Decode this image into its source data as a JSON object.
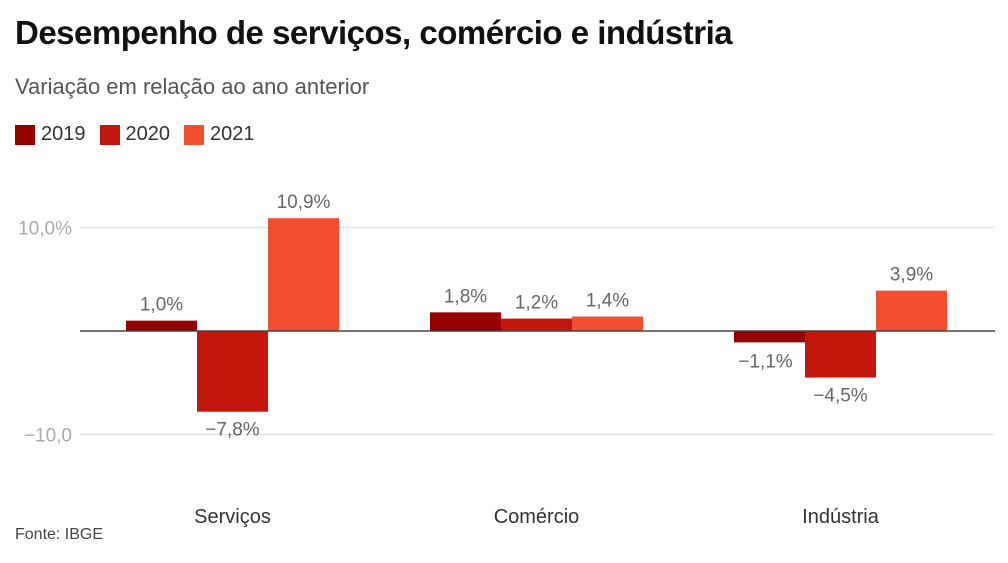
{
  "chart_data": {
    "type": "bar",
    "title": "Desempenho de serviços, comércio e indústria",
    "subtitle": "Variação em relação ao ano anterior",
    "xlabel": "",
    "ylabel": "",
    "categories": [
      "Serviços",
      "Comércio",
      "Indústria"
    ],
    "series": [
      {
        "name": "2019",
        "color": "#960000",
        "values": [
          1.0,
          1.8,
          -1.1
        ],
        "labels": [
          "1,0%",
          "1,8%",
          "−1,1%"
        ]
      },
      {
        "name": "2020",
        "color": "#c4170c",
        "values": [
          -7.8,
          1.2,
          -4.5
        ],
        "labels": [
          "−7,8%",
          "1,2%",
          "−4,5%"
        ]
      },
      {
        "name": "2021",
        "color": "#f24f32",
        "values": [
          10.9,
          1.4,
          3.9
        ],
        "labels": [
          "10,9%",
          "1,4%",
          "3,9%"
        ]
      }
    ],
    "yticks": [
      {
        "value": 10,
        "label": "10,0%"
      },
      {
        "value": -10,
        "label": "−10,0"
      }
    ],
    "ylim": [
      -10,
      10
    ],
    "grid": true,
    "legend_position": "top-left",
    "source": "Fonte: IBGE"
  }
}
